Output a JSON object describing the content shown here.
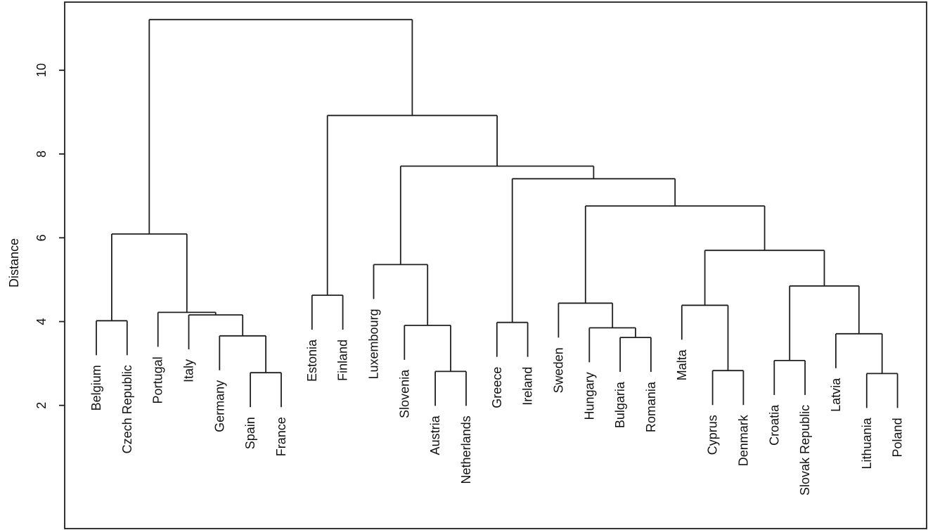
{
  "chart_data": {
    "type": "dendrogram",
    "title": "",
    "axis": {
      "ylabel": "Distance",
      "y_ticks": [
        2,
        4,
        6,
        8,
        10
      ],
      "y_range_shown": [
        0.6,
        11.6
      ],
      "grid": false,
      "frame_box": true
    },
    "leaf_order": [
      "Belgium",
      "Czech Republic",
      "Portugal",
      "Italy",
      "Germany",
      "Spain",
      "France",
      "Estonia",
      "Finland",
      "Luxembourg",
      "Slovenia",
      "Austria",
      "Netherlands",
      "Greece",
      "Ireland",
      "Sweden",
      "Hungary",
      "Bulgaria",
      "Romania",
      "Malta",
      "Cyprus",
      "Denmark",
      "Croatia",
      "Slovak Republic",
      "Latvia",
      "Lithuania",
      "Poland"
    ],
    "tree": {
      "height": 11.21,
      "children": [
        {
          "height": 6.09,
          "children": [
            {
              "height": 4.02,
              "children": [
                {
                  "leaf": "Belgium"
                },
                {
                  "leaf": "Czech Republic"
                }
              ]
            },
            {
              "height": 4.22,
              "children": [
                {
                  "leaf": "Portugal"
                },
                {
                  "height": 4.16,
                  "children": [
                    {
                      "leaf": "Italy"
                    },
                    {
                      "height": 3.66,
                      "children": [
                        {
                          "leaf": "Germany"
                        },
                        {
                          "height": 2.78,
                          "children": [
                            {
                              "leaf": "Spain"
                            },
                            {
                              "leaf": "France"
                            }
                          ]
                        }
                      ]
                    }
                  ]
                }
              ]
            }
          ]
        },
        {
          "height": 8.92,
          "children": [
            {
              "height": 4.63,
              "children": [
                {
                  "leaf": "Estonia"
                },
                {
                  "leaf": "Finland"
                }
              ]
            },
            {
              "height": 7.71,
              "children": [
                {
                  "height": 5.36,
                  "children": [
                    {
                      "leaf": "Luxembourg"
                    },
                    {
                      "height": 3.91,
                      "children": [
                        {
                          "leaf": "Slovenia"
                        },
                        {
                          "height": 2.81,
                          "children": [
                            {
                              "leaf": "Austria"
                            },
                            {
                              "leaf": "Netherlands"
                            }
                          ]
                        }
                      ]
                    }
                  ]
                },
                {
                  "height": 7.41,
                  "children": [
                    {
                      "height": 3.98,
                      "children": [
                        {
                          "leaf": "Greece"
                        },
                        {
                          "leaf": "Ireland"
                        }
                      ]
                    },
                    {
                      "height": 6.76,
                      "children": [
                        {
                          "height": 4.44,
                          "children": [
                            {
                              "leaf": "Sweden"
                            },
                            {
                              "height": 3.85,
                              "children": [
                                {
                                  "leaf": "Hungary"
                                },
                                {
                                  "height": 3.62,
                                  "children": [
                                    {
                                      "leaf": "Bulgaria"
                                    },
                                    {
                                      "leaf": "Romania"
                                    }
                                  ]
                                }
                              ]
                            }
                          ]
                        },
                        {
                          "height": 5.7,
                          "children": [
                            {
                              "height": 4.39,
                              "children": [
                                {
                                  "leaf": "Malta"
                                },
                                {
                                  "height": 2.83,
                                  "children": [
                                    {
                                      "leaf": "Cyprus"
                                    },
                                    {
                                      "leaf": "Denmark"
                                    }
                                  ]
                                }
                              ]
                            },
                            {
                              "height": 4.85,
                              "children": [
                                {
                                  "height": 3.07,
                                  "children": [
                                    {
                                      "leaf": "Croatia"
                                    },
                                    {
                                      "leaf": "Slovak Republic"
                                    }
                                  ]
                                },
                                {
                                  "height": 3.71,
                                  "children": [
                                    {
                                      "leaf": "Latvia"
                                    },
                                    {
                                      "height": 2.76,
                                      "children": [
                                        {
                                          "leaf": "Lithuania"
                                        },
                                        {
                                          "leaf": "Poland"
                                        }
                                      ]
                                    }
                                  ]
                                }
                              ]
                            }
                          ]
                        }
                      ]
                    }
                  ]
                }
              ]
            }
          ]
        }
      ]
    },
    "style": {
      "line_color": "#1f1f1f",
      "background": "#ffffff",
      "leaf_label_rotation_deg": 90
    }
  }
}
